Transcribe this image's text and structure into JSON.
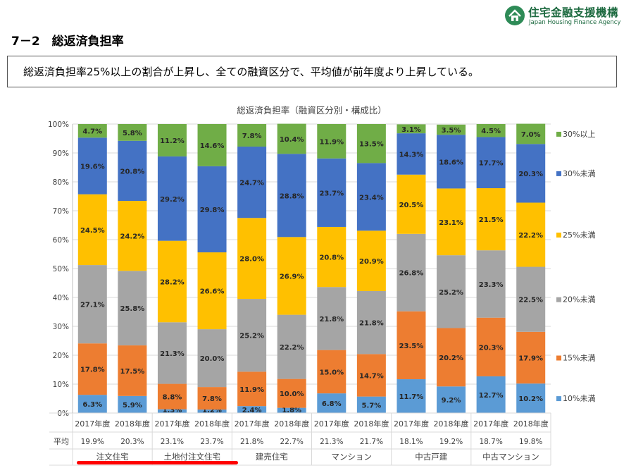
{
  "header": {
    "org_name": "住宅金融支援機構",
    "org_name_en": "Japan Housing Finance Agency",
    "section_title": "7－2　総返済負担率"
  },
  "summary": "総返済負担率25%以上の割合が上昇し、全ての融資区分で、平均値が前年度より上昇している。",
  "chart_data": {
    "type": "bar",
    "stacked": true,
    "title": "総返済負担率（融資区分別・構成比）",
    "y_axis": {
      "min": 0,
      "max": 100,
      "step": 10,
      "unit": "%"
    },
    "groups": [
      {
        "name": "注文住宅",
        "years": [
          "2017年度",
          "2018年度"
        ],
        "averages": [
          "19.9%",
          "20.3%"
        ]
      },
      {
        "name": "土地付注文住宅",
        "years": [
          "2017年度",
          "2018年度"
        ],
        "averages": [
          "23.1%",
          "23.7%"
        ]
      },
      {
        "name": "建売住宅",
        "years": [
          "2017年度",
          "2018年度"
        ],
        "averages": [
          "21.8%",
          "22.7%"
        ]
      },
      {
        "name": "マンション",
        "years": [
          "2017年度",
          "2018年度"
        ],
        "averages": [
          "21.3%",
          "21.7%"
        ]
      },
      {
        "name": "中古戸建",
        "years": [
          "2017年度",
          "2018年度"
        ],
        "averages": [
          "18.1%",
          "19.2%"
        ]
      },
      {
        "name": "中古マンション",
        "years": [
          "2017年度",
          "2018年度"
        ],
        "averages": [
          "18.7%",
          "19.8%"
        ]
      }
    ],
    "average_label": "平均",
    "series": [
      {
        "name": "10%未満",
        "color": "#5b9bd5",
        "values": [
          6.3,
          5.9,
          1.3,
          1.2,
          2.4,
          1.8,
          6.8,
          5.7,
          11.7,
          9.2,
          12.7,
          10.2
        ]
      },
      {
        "name": "15%未満",
        "color": "#ed7d31",
        "values": [
          17.8,
          17.5,
          8.8,
          7.8,
          11.9,
          10.0,
          15.0,
          14.7,
          23.5,
          20.2,
          20.3,
          17.9
        ]
      },
      {
        "name": "20%未満",
        "color": "#a5a5a5",
        "values": [
          27.1,
          25.8,
          21.3,
          20.0,
          25.2,
          22.2,
          21.8,
          21.8,
          26.8,
          25.2,
          23.3,
          22.5
        ]
      },
      {
        "name": "25%未満",
        "color": "#ffc000",
        "values": [
          24.5,
          24.2,
          28.2,
          26.6,
          28.0,
          26.9,
          20.8,
          20.9,
          20.5,
          23.1,
          21.5,
          22.2
        ]
      },
      {
        "name": "30%未満",
        "color": "#4472c4",
        "values": [
          19.6,
          20.8,
          29.2,
          29.8,
          24.7,
          28.8,
          23.7,
          23.4,
          14.3,
          18.6,
          17.7,
          20.3
        ]
      },
      {
        "name": "30%以上",
        "color": "#70ad47",
        "values": [
          4.7,
          5.8,
          11.2,
          14.6,
          7.8,
          10.4,
          11.9,
          13.5,
          3.1,
          3.5,
          4.5,
          7.0
        ]
      }
    ]
  }
}
